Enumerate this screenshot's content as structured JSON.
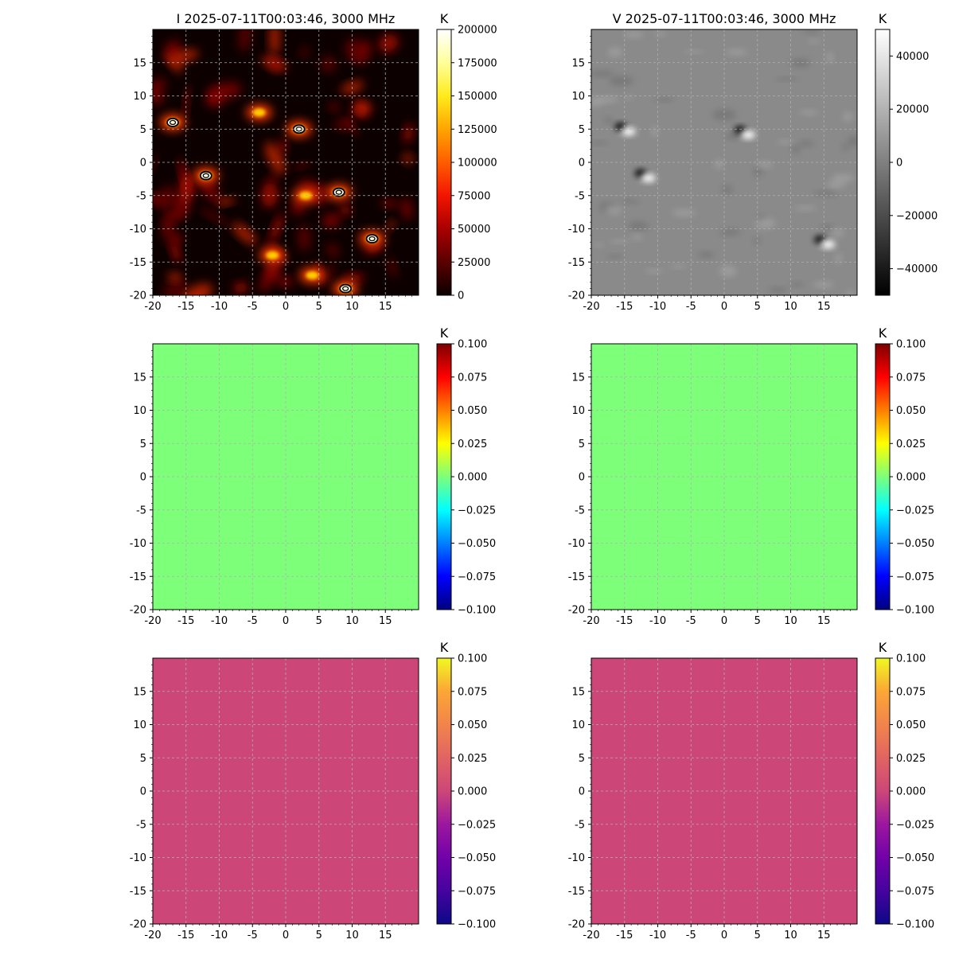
{
  "figure": {
    "rows": 3,
    "cols": 2
  },
  "chart_data": [
    {
      "type": "heatmap",
      "title": "I 2025-07-11T00:03:46, 3000 MHz",
      "xlabel": "",
      "ylabel": "",
      "xlim": [
        -20,
        20
      ],
      "ylim": [
        -20,
        20
      ],
      "xticks": [
        "-20",
        "-15",
        "-10",
        "-5",
        "0",
        "5",
        "10",
        "15"
      ],
      "yticks": [
        "-20",
        "-15",
        "-10",
        "-5",
        "0",
        "5",
        "10",
        "15"
      ],
      "grid": true,
      "colormap": "hot",
      "background_color": "#0d0000",
      "colorbar": {
        "unit": "K",
        "range": [
          0,
          200000
        ],
        "ticks": [
          "0",
          "25000",
          "50000",
          "75000",
          "100000",
          "125000",
          "150000",
          "175000",
          "200000"
        ],
        "colors": [
          "#0b0000",
          "#5a0000",
          "#a80000",
          "#f21500",
          "#ff5d00",
          "#ffa500",
          "#ffeb1c",
          "#ffff9a",
          "#ffffff"
        ]
      },
      "bright_sources": [
        {
          "x": -17,
          "y": 6,
          "contour": true
        },
        {
          "x": 2,
          "y": 5,
          "contour": true
        },
        {
          "x": -12,
          "y": -2,
          "contour": true
        },
        {
          "x": 8,
          "y": -4.5,
          "contour": true
        },
        {
          "x": 13,
          "y": -11.5,
          "contour": true
        },
        {
          "x": 9,
          "y": -19,
          "contour": true
        },
        {
          "x": 3,
          "y": -5,
          "contour": false
        },
        {
          "x": 4,
          "y": -17,
          "contour": false
        },
        {
          "x": -4,
          "y": 7.5,
          "contour": false
        },
        {
          "x": -2,
          "y": -14,
          "contour": false
        }
      ]
    },
    {
      "type": "heatmap",
      "title": "V 2025-07-11T00:03:46, 3000 MHz",
      "xlabel": "",
      "ylabel": "",
      "xlim": [
        -20,
        20
      ],
      "ylim": [
        -20,
        20
      ],
      "xticks": [
        "-20",
        "-15",
        "-10",
        "-5",
        "0",
        "5",
        "10",
        "15"
      ],
      "yticks": [
        "-20",
        "-15",
        "-10",
        "-5",
        "0",
        "5",
        "10",
        "15"
      ],
      "grid": true,
      "colormap": "gray",
      "background_color": "#8a8a8a",
      "colorbar": {
        "unit": "K",
        "range": [
          -50000,
          50000
        ],
        "ticks": [
          "−40000",
          "−20000",
          "0",
          "20000",
          "40000"
        ],
        "tick_values": [
          -40000,
          -20000,
          0,
          20000,
          40000
        ],
        "colors": [
          "#000000",
          "#ffffff"
        ]
      },
      "bipolar_sources": [
        {
          "x": -15,
          "y": 5
        },
        {
          "x": 3,
          "y": 4.5
        },
        {
          "x": 15,
          "y": -12
        },
        {
          "x": -12,
          "y": -2
        }
      ]
    },
    {
      "type": "heatmap",
      "title": "",
      "xlim": [
        -20,
        20
      ],
      "ylim": [
        -20,
        20
      ],
      "xticks": [
        "-20",
        "-15",
        "-10",
        "-5",
        "0",
        "5",
        "10",
        "15"
      ],
      "yticks": [
        "-20",
        "-15",
        "-10",
        "-5",
        "0",
        "5",
        "10",
        "15"
      ],
      "grid": true,
      "colormap": "jet",
      "uniform_value": 0.0,
      "fill_color": "#7dff7a",
      "colorbar": {
        "unit": "K",
        "range": [
          -0.1,
          0.1
        ],
        "ticks": [
          "−0.100",
          "−0.075",
          "−0.050",
          "−0.025",
          "0.000",
          "0.025",
          "0.050",
          "0.075",
          "0.100"
        ],
        "colors": [
          "#00007f",
          "#0000ff",
          "#007fff",
          "#00ffff",
          "#7dff7a",
          "#ffff00",
          "#ff7f00",
          "#ff0000",
          "#7f0000"
        ]
      }
    },
    {
      "type": "heatmap",
      "title": "",
      "xlim": [
        -20,
        20
      ],
      "ylim": [
        -20,
        20
      ],
      "xticks": [
        "-20",
        "-15",
        "-10",
        "-5",
        "0",
        "5",
        "10",
        "15"
      ],
      "yticks": [
        "-20",
        "-15",
        "-10",
        "-5",
        "0",
        "5",
        "10",
        "15"
      ],
      "grid": true,
      "colormap": "jet",
      "uniform_value": 0.0,
      "fill_color": "#7dff7a",
      "colorbar": {
        "unit": "K",
        "range": [
          -0.1,
          0.1
        ],
        "ticks": [
          "−0.100",
          "−0.075",
          "−0.050",
          "−0.025",
          "0.000",
          "0.025",
          "0.050",
          "0.075",
          "0.100"
        ],
        "colors": [
          "#00007f",
          "#0000ff",
          "#007fff",
          "#00ffff",
          "#7dff7a",
          "#ffff00",
          "#ff7f00",
          "#ff0000",
          "#7f0000"
        ]
      }
    },
    {
      "type": "heatmap",
      "title": "",
      "xlim": [
        -20,
        20
      ],
      "ylim": [
        -20,
        20
      ],
      "xticks": [
        "-20",
        "-15",
        "-10",
        "-5",
        "0",
        "5",
        "10",
        "15"
      ],
      "yticks": [
        "-20",
        "-15",
        "-10",
        "-5",
        "0",
        "5",
        "10",
        "15"
      ],
      "grid": true,
      "colormap": "plasma",
      "uniform_value": 0.0,
      "fill_color": "#cc4778",
      "colorbar": {
        "unit": "K",
        "range": [
          -0.1,
          0.1
        ],
        "ticks": [
          "−0.100",
          "−0.075",
          "−0.050",
          "−0.025",
          "0.000",
          "0.025",
          "0.050",
          "0.075",
          "0.100"
        ],
        "colors": [
          "#0d0887",
          "#46039f",
          "#7201a8",
          "#9c179e",
          "#cc4778",
          "#e16462",
          "#f2844b",
          "#fca636",
          "#f0f921"
        ]
      }
    },
    {
      "type": "heatmap",
      "title": "",
      "xlim": [
        -20,
        20
      ],
      "ylim": [
        -20,
        20
      ],
      "xticks": [
        "-20",
        "-15",
        "-10",
        "-5",
        "0",
        "5",
        "10",
        "15"
      ],
      "yticks": [
        "-20",
        "-15",
        "-10",
        "-5",
        "0",
        "5",
        "10",
        "15"
      ],
      "grid": true,
      "colormap": "plasma",
      "uniform_value": 0.0,
      "fill_color": "#cc4778",
      "colorbar": {
        "unit": "K",
        "range": [
          -0.1,
          0.1
        ],
        "ticks": [
          "−0.100",
          "−0.075",
          "−0.050",
          "−0.025",
          "0.000",
          "0.025",
          "0.050",
          "0.075",
          "0.100"
        ],
        "colors": [
          "#0d0887",
          "#46039f",
          "#7201a8",
          "#9c179e",
          "#cc4778",
          "#e16462",
          "#f2844b",
          "#fca636",
          "#f0f921"
        ]
      }
    }
  ]
}
